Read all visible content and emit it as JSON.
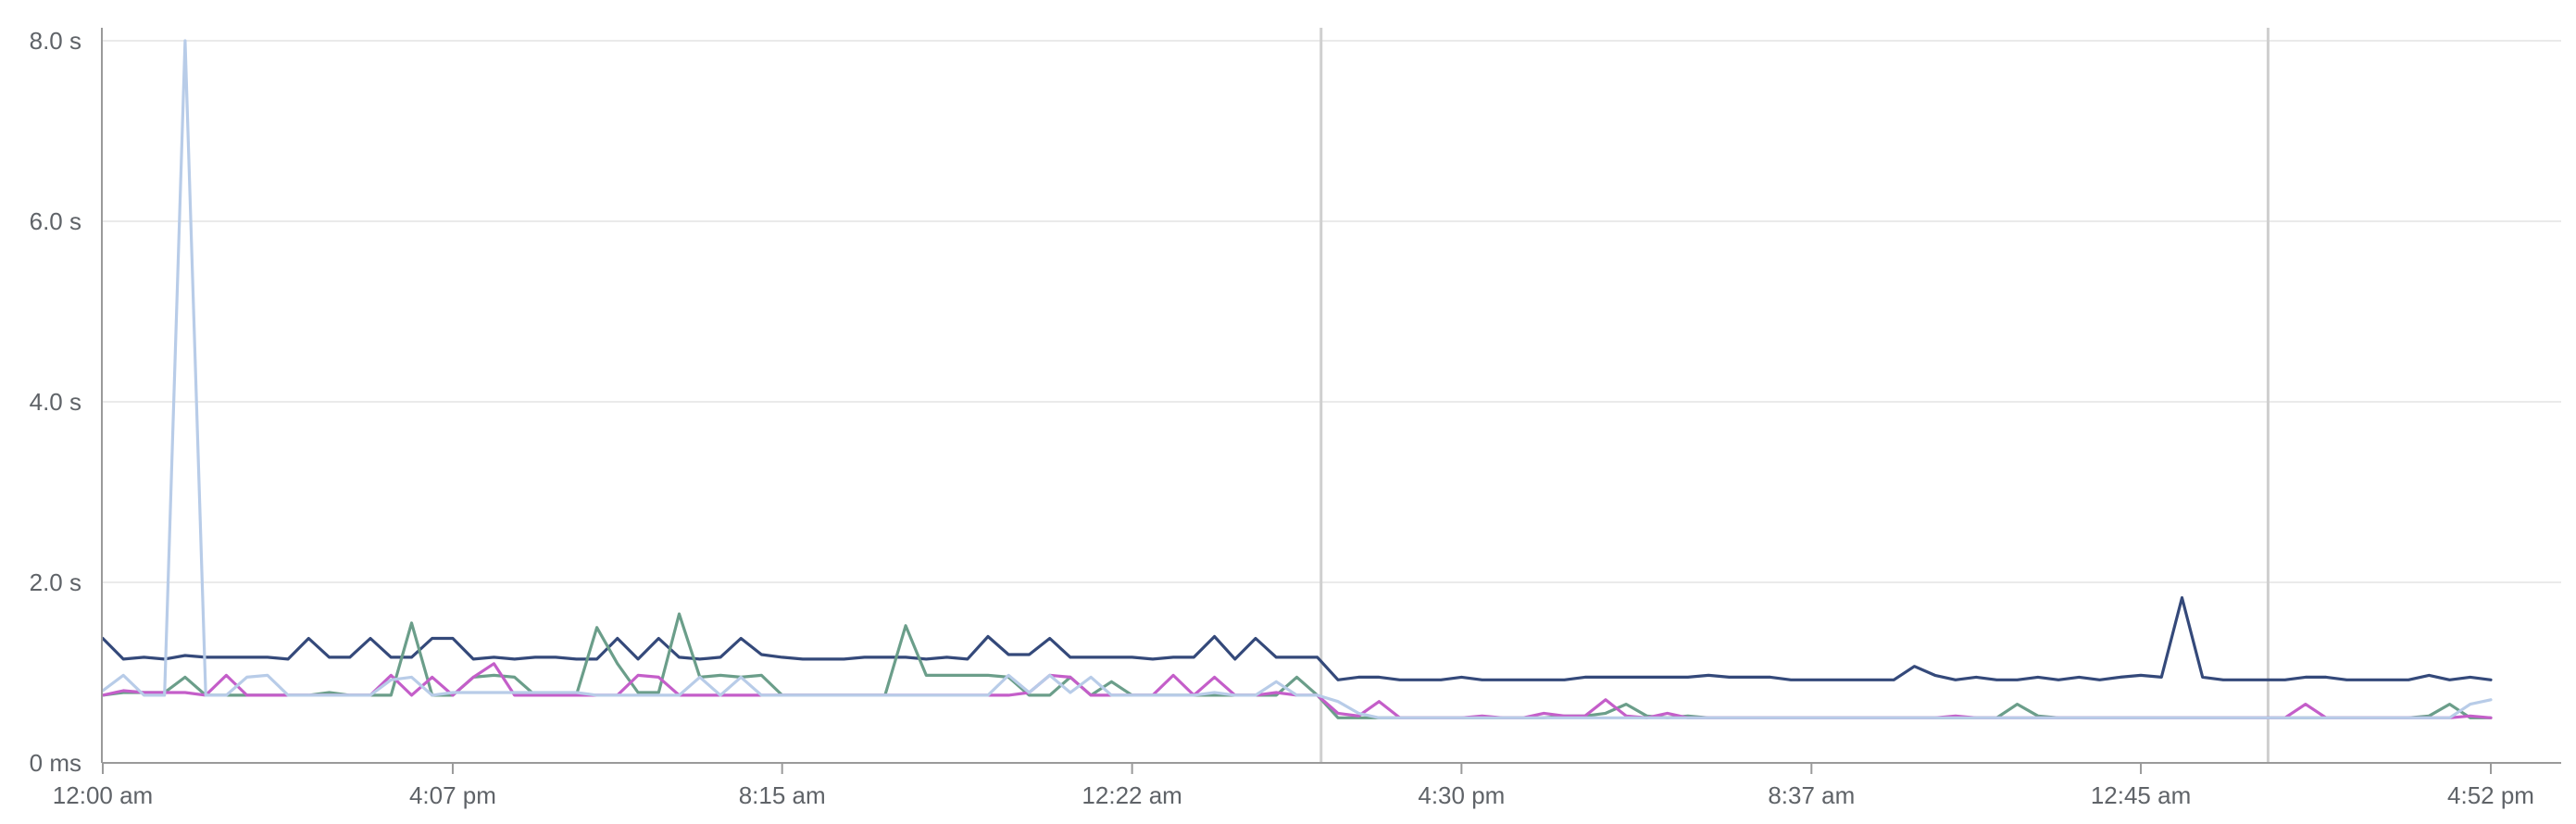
{
  "chart_data": {
    "type": "line",
    "x_tick_labels": [
      "12:00 am",
      "4:07 pm",
      "8:15 am",
      "12:22 am",
      "4:30 pm",
      "8:37 am",
      "12:45 am",
      "4:52 pm"
    ],
    "y_tick_labels": [
      "0 ms",
      "2.0 s",
      "4.0 s",
      "6.0 s",
      "8.0 s"
    ],
    "y_ticks_seconds": [
      0,
      2,
      4,
      6,
      8
    ],
    "ylim": [
      0,
      8
    ],
    "grid": true,
    "legend": "none",
    "vertical_markers_at_point_index": [
      59,
      105
    ],
    "series": [
      {
        "color": "#34497a",
        "values": [
          1.38,
          1.15,
          1.17,
          1.15,
          1.19,
          1.17,
          1.17,
          1.17,
          1.17,
          1.15,
          1.38,
          1.17,
          1.17,
          1.38,
          1.17,
          1.17,
          1.38,
          1.38,
          1.15,
          1.17,
          1.15,
          1.17,
          1.17,
          1.15,
          1.15,
          1.38,
          1.15,
          1.38,
          1.17,
          1.15,
          1.17,
          1.38,
          1.2,
          1.17,
          1.15,
          1.15,
          1.15,
          1.17,
          1.17,
          1.17,
          1.15,
          1.17,
          1.15,
          1.4,
          1.2,
          1.2,
          1.38,
          1.17,
          1.17,
          1.17,
          1.17,
          1.15,
          1.17,
          1.17,
          1.4,
          1.15,
          1.38,
          1.17,
          1.17,
          1.17,
          0.92,
          0.95,
          0.95,
          0.92,
          0.92,
          0.92,
          0.95,
          0.92,
          0.92,
          0.92,
          0.92,
          0.92,
          0.95,
          0.95,
          0.95,
          0.95,
          0.95,
          0.95,
          0.97,
          0.95,
          0.95,
          0.95,
          0.92,
          0.92,
          0.92,
          0.92,
          0.92,
          0.92,
          1.07,
          0.97,
          0.92,
          0.95,
          0.92,
          0.92,
          0.95,
          0.92,
          0.95,
          0.92,
          0.95,
          0.97,
          0.95,
          1.83,
          0.95,
          0.92,
          0.92,
          0.92,
          0.92,
          0.95,
          0.95,
          0.92,
          0.92,
          0.92,
          0.92,
          0.97,
          0.92,
          0.95,
          0.92
        ]
      },
      {
        "color": "#6b9e8a",
        "values": [
          0.75,
          0.78,
          0.78,
          0.78,
          0.95,
          0.75,
          0.75,
          0.75,
          0.75,
          0.75,
          0.75,
          0.78,
          0.75,
          0.75,
          0.75,
          1.55,
          0.75,
          0.75,
          0.95,
          0.97,
          0.95,
          0.75,
          0.75,
          0.75,
          1.5,
          1.1,
          0.78,
          0.78,
          1.65,
          0.95,
          0.97,
          0.95,
          0.97,
          0.75,
          0.75,
          0.75,
          0.75,
          0.75,
          0.75,
          1.52,
          0.97,
          0.97,
          0.97,
          0.97,
          0.95,
          0.75,
          0.75,
          0.95,
          0.75,
          0.9,
          0.75,
          0.75,
          0.75,
          0.75,
          0.75,
          0.75,
          0.75,
          0.75,
          0.95,
          0.75,
          0.5,
          0.5,
          0.5,
          0.5,
          0.5,
          0.5,
          0.5,
          0.5,
          0.5,
          0.5,
          0.5,
          0.52,
          0.52,
          0.55,
          0.65,
          0.52,
          0.5,
          0.52,
          0.5,
          0.5,
          0.5,
          0.5,
          0.5,
          0.5,
          0.5,
          0.5,
          0.5,
          0.5,
          0.5,
          0.5,
          0.5,
          0.5,
          0.5,
          0.65,
          0.52,
          0.5,
          0.5,
          0.5,
          0.5,
          0.5,
          0.5,
          0.5,
          0.5,
          0.5,
          0.5,
          0.5,
          0.5,
          0.5,
          0.5,
          0.5,
          0.5,
          0.5,
          0.5,
          0.52,
          0.65,
          0.5,
          0.5
        ]
      },
      {
        "color": "#c45ec9",
        "values": [
          0.75,
          0.8,
          0.78,
          0.78,
          0.78,
          0.75,
          0.97,
          0.75,
          0.75,
          0.75,
          0.75,
          0.75,
          0.75,
          0.75,
          0.97,
          0.75,
          0.95,
          0.75,
          0.95,
          1.1,
          0.75,
          0.75,
          0.75,
          0.75,
          0.75,
          0.75,
          0.97,
          0.95,
          0.75,
          0.75,
          0.75,
          0.75,
          0.75,
          0.75,
          0.75,
          0.75,
          0.75,
          0.75,
          0.75,
          0.75,
          0.75,
          0.75,
          0.75,
          0.75,
          0.75,
          0.78,
          0.97,
          0.95,
          0.75,
          0.75,
          0.75,
          0.75,
          0.97,
          0.75,
          0.95,
          0.75,
          0.75,
          0.78,
          0.75,
          0.75,
          0.55,
          0.52,
          0.68,
          0.5,
          0.5,
          0.5,
          0.5,
          0.52,
          0.5,
          0.5,
          0.55,
          0.52,
          0.52,
          0.7,
          0.52,
          0.5,
          0.55,
          0.5,
          0.5,
          0.5,
          0.5,
          0.5,
          0.5,
          0.5,
          0.5,
          0.5,
          0.5,
          0.5,
          0.5,
          0.5,
          0.52,
          0.5,
          0.5,
          0.5,
          0.5,
          0.5,
          0.5,
          0.5,
          0.5,
          0.5,
          0.5,
          0.5,
          0.5,
          0.5,
          0.5,
          0.5,
          0.5,
          0.65,
          0.5,
          0.5,
          0.5,
          0.5,
          0.5,
          0.5,
          0.5,
          0.52,
          0.5
        ]
      },
      {
        "color": "#b8cce8",
        "values": [
          0.8,
          0.97,
          0.75,
          0.75,
          8.0,
          0.75,
          0.75,
          0.95,
          0.97,
          0.75,
          0.75,
          0.75,
          0.75,
          0.75,
          0.92,
          0.95,
          0.75,
          0.78,
          0.78,
          0.78,
          0.78,
          0.78,
          0.78,
          0.78,
          0.75,
          0.75,
          0.75,
          0.75,
          0.75,
          0.95,
          0.75,
          0.95,
          0.75,
          0.75,
          0.75,
          0.75,
          0.75,
          0.75,
          0.75,
          0.75,
          0.75,
          0.75,
          0.75,
          0.75,
          0.97,
          0.78,
          0.97,
          0.78,
          0.95,
          0.75,
          0.75,
          0.75,
          0.75,
          0.75,
          0.78,
          0.75,
          0.75,
          0.9,
          0.75,
          0.75,
          0.68,
          0.55,
          0.5,
          0.5,
          0.5,
          0.5,
          0.5,
          0.5,
          0.5,
          0.5,
          0.5,
          0.5,
          0.5,
          0.5,
          0.5,
          0.5,
          0.5,
          0.5,
          0.5,
          0.5,
          0.5,
          0.5,
          0.5,
          0.5,
          0.5,
          0.5,
          0.5,
          0.5,
          0.5,
          0.5,
          0.5,
          0.5,
          0.5,
          0.5,
          0.5,
          0.5,
          0.5,
          0.5,
          0.5,
          0.5,
          0.5,
          0.5,
          0.5,
          0.5,
          0.5,
          0.5,
          0.5,
          0.5,
          0.5,
          0.5,
          0.5,
          0.5,
          0.5,
          0.5,
          0.5,
          0.65,
          0.7
        ]
      }
    ]
  }
}
